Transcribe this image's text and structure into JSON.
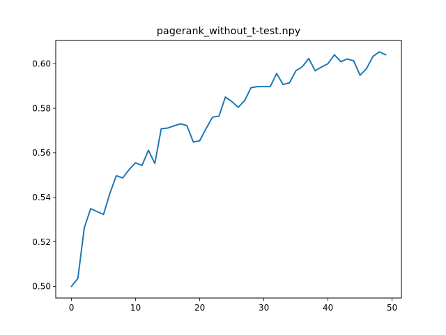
{
  "chart_data": {
    "type": "line",
    "title": "pagerank_without_t-test.npy",
    "xlabel": "",
    "ylabel": "",
    "xlim": [
      -2.45,
      51.45
    ],
    "ylim": [
      0.4948,
      0.6104
    ],
    "xticks": [
      0,
      10,
      20,
      30,
      40,
      50
    ],
    "yticks": [
      0.5,
      0.52,
      0.54,
      0.56,
      0.58,
      0.6
    ],
    "ytick_labels": [
      "0.50",
      "0.52",
      "0.54",
      "0.56",
      "0.58",
      "0.60"
    ],
    "grid": false,
    "line_color": "#1f77b4",
    "series": [
      {
        "x": [
          0,
          1,
          2,
          3,
          4,
          5,
          6,
          7,
          8,
          9,
          10,
          11,
          12,
          13,
          14,
          15,
          16,
          17,
          18,
          19,
          20,
          21,
          22,
          23,
          24,
          25,
          26,
          27,
          28,
          29,
          30,
          31,
          32,
          33,
          34,
          35,
          36,
          37,
          38,
          39,
          40,
          41,
          42,
          43,
          44,
          45,
          46,
          47,
          48,
          49
        ],
        "values": [
          0.5,
          0.5036,
          0.5263,
          0.5349,
          0.5336,
          0.5323,
          0.5419,
          0.5497,
          0.5487,
          0.5525,
          0.5555,
          0.5543,
          0.5611,
          0.5552,
          0.5708,
          0.5711,
          0.5721,
          0.573,
          0.5722,
          0.5648,
          0.5654,
          0.5709,
          0.576,
          0.5764,
          0.585,
          0.583,
          0.5804,
          0.5834,
          0.5892,
          0.5897,
          0.5897,
          0.5897,
          0.5956,
          0.5906,
          0.5914,
          0.5968,
          0.5986,
          0.6023,
          0.5968,
          0.5985,
          0.6,
          0.604,
          0.6009,
          0.6021,
          0.6013,
          0.5948,
          0.5977,
          0.6032,
          0.6053,
          0.604
        ]
      }
    ]
  }
}
